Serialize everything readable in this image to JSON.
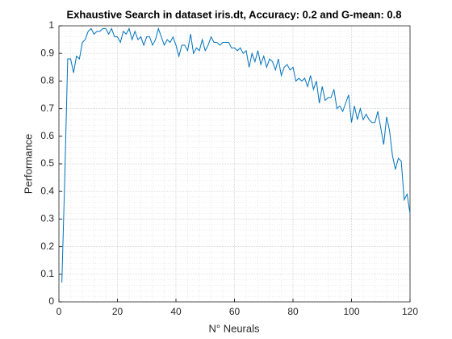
{
  "chart_data": {
    "type": "line",
    "title": "Exhaustive Search in dataset iris.dt, Accuracy: 0.2 and G-mean: 0.8",
    "xlabel": "N° Neurals",
    "ylabel": "Performance",
    "x": [
      1,
      2,
      3,
      4,
      5,
      6,
      7,
      8,
      9,
      10,
      11,
      12,
      13,
      14,
      15,
      16,
      17,
      18,
      19,
      20,
      21,
      22,
      23,
      24,
      25,
      26,
      27,
      28,
      29,
      30,
      31,
      32,
      33,
      34,
      35,
      36,
      37,
      38,
      39,
      40,
      41,
      42,
      43,
      44,
      45,
      46,
      47,
      48,
      49,
      50,
      51,
      52,
      53,
      54,
      55,
      56,
      57,
      58,
      59,
      60,
      61,
      62,
      63,
      64,
      65,
      66,
      67,
      68,
      69,
      70,
      71,
      72,
      73,
      74,
      75,
      76,
      77,
      78,
      79,
      80,
      81,
      82,
      83,
      84,
      85,
      86,
      87,
      88,
      89,
      90,
      91,
      92,
      93,
      94,
      95,
      96,
      97,
      98,
      99,
      100,
      101,
      102,
      103,
      104,
      105,
      106,
      107,
      108,
      109,
      110,
      111,
      112,
      113,
      114,
      115,
      116,
      117,
      118,
      119,
      120
    ],
    "series": [
      {
        "name": "Performance",
        "color": "#0072bd",
        "values": [
          0.07,
          0.45,
          0.88,
          0.88,
          0.83,
          0.89,
          0.88,
          0.94,
          0.95,
          0.98,
          0.99,
          0.97,
          0.98,
          0.98,
          0.99,
          0.99,
          0.97,
          0.99,
          0.96,
          0.96,
          0.94,
          0.98,
          0.97,
          0.99,
          0.95,
          0.98,
          0.95,
          0.96,
          0.93,
          0.96,
          0.96,
          0.93,
          0.95,
          0.99,
          0.96,
          0.93,
          0.95,
          0.94,
          0.96,
          0.93,
          0.89,
          0.93,
          0.93,
          0.91,
          0.97,
          0.9,
          0.92,
          0.91,
          0.95,
          0.91,
          0.93,
          0.96,
          0.94,
          0.94,
          0.93,
          0.94,
          0.94,
          0.94,
          0.92,
          0.92,
          0.91,
          0.92,
          0.9,
          0.91,
          0.85,
          0.9,
          0.87,
          0.91,
          0.86,
          0.89,
          0.85,
          0.88,
          0.87,
          0.84,
          0.88,
          0.82,
          0.85,
          0.86,
          0.84,
          0.85,
          0.8,
          0.81,
          0.8,
          0.81,
          0.78,
          0.82,
          0.77,
          0.8,
          0.72,
          0.78,
          0.73,
          0.74,
          0.74,
          0.77,
          0.7,
          0.71,
          0.69,
          0.72,
          0.75,
          0.65,
          0.71,
          0.66,
          0.7,
          0.66,
          0.68,
          0.66,
          0.65,
          0.65,
          0.69,
          0.63,
          0.57,
          0.67,
          0.62,
          0.53,
          0.48,
          0.52,
          0.51,
          0.37,
          0.39,
          0.32
        ]
      }
    ],
    "xlim": [
      0,
      120
    ],
    "xticks": [
      0,
      20,
      40,
      60,
      80,
      100,
      120
    ],
    "ylim": [
      0,
      1
    ],
    "yticks": [
      0,
      0.1,
      0.2,
      0.3,
      0.4,
      0.5,
      0.6,
      0.7,
      0.8,
      0.9,
      1
    ],
    "grid": true
  }
}
